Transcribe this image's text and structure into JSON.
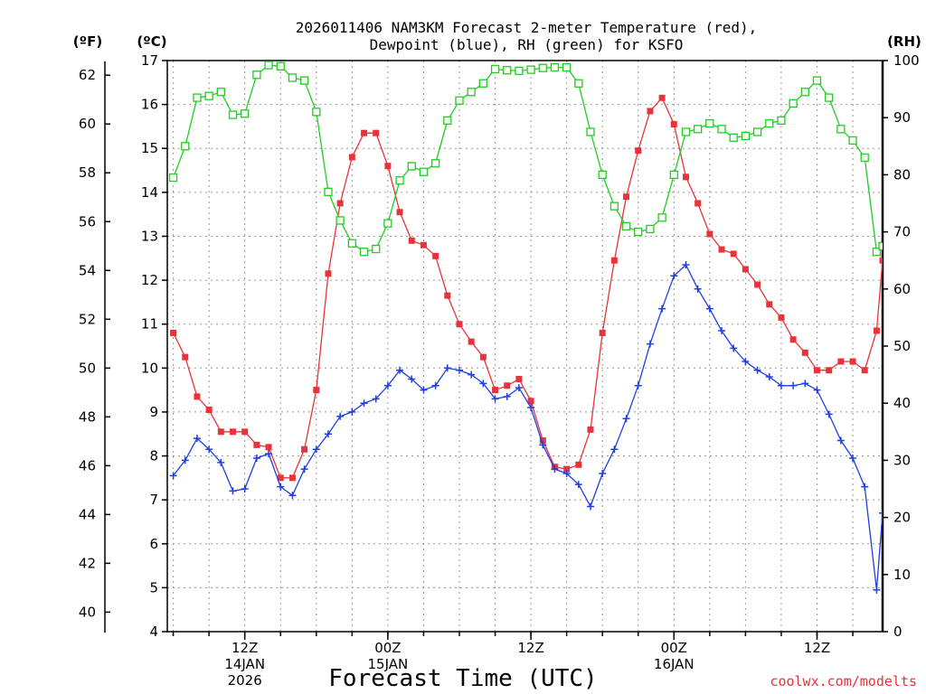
{
  "title_line1": "2026011406 NAM3KM Forecast 2-meter Temperature (red),",
  "title_line2": "Dewpoint (blue), RH (green) for KSFO",
  "unit_f": "(ºF)",
  "unit_c": "(ºC)",
  "unit_rh": "(RH)",
  "xlabel": "Forecast Time (UTC)",
  "credit": "coolwx.com/modelts",
  "colors": {
    "temp": "#e8333a",
    "dewpoint": "#1f3fe0",
    "rh": "#22cc22",
    "grid": "#999999"
  },
  "chart_data": {
    "type": "line",
    "title": "2026011406 NAM3KM Forecast 2-meter Temperature (red), Dewpoint (blue), RH (green) for KSFO",
    "xlabel": "Forecast Time (UTC)",
    "x_unit": "hours since 2026-01-14 06Z",
    "xlim": [
      -0.5,
      59.5
    ],
    "ylim_c": [
      4,
      17
    ],
    "ylim_f": [
      39.2,
      62.6
    ],
    "ylim_rh": [
      0,
      100
    ],
    "yticks_c": [
      "4",
      "5",
      "6",
      "7",
      "8",
      "9",
      "10",
      "11",
      "12",
      "13",
      "14",
      "15",
      "16",
      "17"
    ],
    "yticks_f": [
      "40",
      "42",
      "44",
      "46",
      "48",
      "50",
      "52",
      "54",
      "56",
      "58",
      "60",
      "62"
    ],
    "yticks_rh": [
      "0",
      "10",
      "20",
      "30",
      "40",
      "50",
      "60",
      "70",
      "80",
      "90",
      "100"
    ],
    "xticks": [
      {
        "x": 6,
        "label": "12Z",
        "sub1": "14JAN",
        "sub2": "2026"
      },
      {
        "x": 18,
        "label": "00Z",
        "sub1": "15JAN",
        "sub2": ""
      },
      {
        "x": 30,
        "label": "12Z",
        "sub1": "",
        "sub2": ""
      },
      {
        "x": 42,
        "label": "00Z",
        "sub1": "16JAN",
        "sub2": ""
      },
      {
        "x": 54,
        "label": "12Z",
        "sub1": "",
        "sub2": ""
      }
    ],
    "series": [
      {
        "name": "2-meter Temperature",
        "unit": "C",
        "axis": "c",
        "color": "#e8333a",
        "marker": "filled-square",
        "x": [
          0,
          1,
          2,
          3,
          4,
          5,
          6,
          7,
          8,
          9,
          10,
          11,
          12,
          13,
          14,
          15,
          16,
          17,
          18,
          19,
          20,
          21,
          22,
          23,
          24,
          25,
          26,
          27,
          28,
          29,
          30,
          31,
          32,
          33,
          34,
          35,
          36,
          37,
          38,
          39,
          40,
          41,
          42,
          43,
          44,
          45,
          46,
          47,
          48,
          49,
          50,
          51,
          52,
          53,
          54,
          55,
          56,
          57,
          58,
          59,
          59.5
        ],
        "values": [
          10.8,
          10.25,
          9.35,
          9.05,
          8.55,
          8.55,
          8.55,
          8.25,
          8.2,
          7.5,
          7.5,
          8.15,
          9.5,
          12.15,
          13.75,
          14.8,
          15.35,
          15.35,
          14.6,
          13.55,
          12.9,
          12.8,
          12.55,
          11.65,
          11.0,
          10.6,
          10.25,
          9.5,
          9.6,
          9.75,
          9.25,
          8.35,
          7.75,
          7.7,
          7.8,
          8.6,
          10.8,
          12.45,
          13.9,
          14.95,
          15.85,
          16.15,
          15.55,
          14.35,
          13.75,
          13.05,
          12.7,
          12.6,
          12.25,
          11.9,
          11.45,
          11.15,
          10.65,
          10.35,
          9.95,
          9.95,
          10.15,
          10.15,
          9.95,
          10.85,
          12.45
        ]
      },
      {
        "name": "Dewpoint",
        "unit": "C",
        "axis": "c",
        "color": "#1f3fe0",
        "marker": "plus",
        "x": [
          0,
          1,
          2,
          3,
          4,
          5,
          6,
          7,
          8,
          9,
          10,
          11,
          12,
          13,
          14,
          15,
          16,
          17,
          18,
          19,
          20,
          21,
          22,
          23,
          24,
          25,
          26,
          27,
          28,
          29,
          30,
          31,
          32,
          33,
          34,
          35,
          36,
          37,
          38,
          39,
          40,
          41,
          42,
          43,
          44,
          45,
          46,
          47,
          48,
          49,
          50,
          51,
          52,
          53,
          54,
          55,
          56,
          57,
          58,
          59,
          59.5
        ],
        "values": [
          7.55,
          7.9,
          8.4,
          8.15,
          7.85,
          7.2,
          7.25,
          7.95,
          8.05,
          7.3,
          7.1,
          7.7,
          8.15,
          8.5,
          8.9,
          9.0,
          9.2,
          9.3,
          9.6,
          9.95,
          9.75,
          9.5,
          9.6,
          10.0,
          9.95,
          9.85,
          9.65,
          9.3,
          9.35,
          9.55,
          9.1,
          8.25,
          7.7,
          7.6,
          7.35,
          6.85,
          7.6,
          8.15,
          8.85,
          9.6,
          10.55,
          11.35,
          12.1,
          12.35,
          11.8,
          11.35,
          10.85,
          10.45,
          10.15,
          9.95,
          9.8,
          9.6,
          9.6,
          9.65,
          9.5,
          8.95,
          8.35,
          7.95,
          7.3,
          4.95,
          6.7
        ]
      },
      {
        "name": "RH",
        "unit": "%",
        "axis": "rh",
        "color": "#22cc22",
        "marker": "open-square",
        "x": [
          0,
          1,
          2,
          3,
          4,
          5,
          6,
          7,
          8,
          9,
          10,
          11,
          12,
          13,
          14,
          15,
          16,
          17,
          18,
          19,
          20,
          21,
          22,
          23,
          24,
          25,
          26,
          27,
          28,
          29,
          30,
          31,
          32,
          33,
          34,
          35,
          36,
          37,
          38,
          39,
          40,
          41,
          42,
          43,
          44,
          45,
          46,
          47,
          48,
          49,
          50,
          51,
          52,
          53,
          54,
          55,
          56,
          57,
          58,
          59,
          59.5
        ],
        "values": [
          79.5,
          85,
          93.5,
          93.8,
          94.5,
          90.5,
          90.7,
          97.5,
          99.2,
          99,
          97,
          96.5,
          91,
          77,
          72,
          68,
          66.5,
          67,
          71.5,
          79,
          81.5,
          80.5,
          82,
          89.5,
          93,
          94.5,
          96,
          98.5,
          98.3,
          98.2,
          98.4,
          98.7,
          98.8,
          98.8,
          96,
          87.5,
          80,
          74.5,
          71,
          70,
          70.5,
          72.5,
          80,
          87.5,
          88,
          89,
          88,
          86.5,
          86.8,
          87.5,
          89,
          89.5,
          92.5,
          94.5,
          96.5,
          93.5,
          88,
          86,
          83,
          66.5,
          67.5
        ]
      }
    ]
  }
}
